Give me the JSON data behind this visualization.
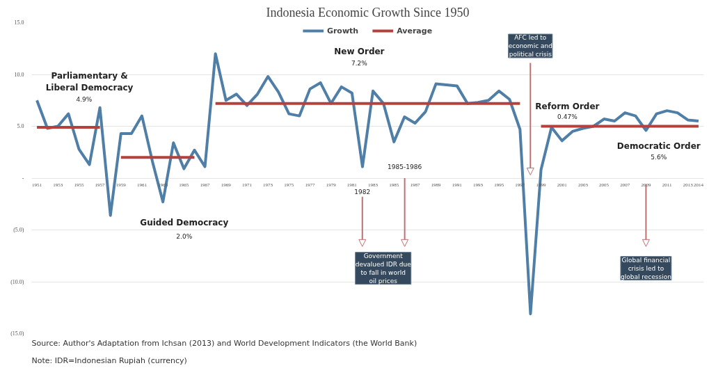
{
  "chart_data": {
    "type": "line",
    "title": "Indonesia Economic Growth Since 1950",
    "x": [
      1951,
      1952,
      1953,
      1954,
      1955,
      1956,
      1957,
      1958,
      1959,
      1960,
      1961,
      1962,
      1963,
      1964,
      1965,
      1966,
      1967,
      1968,
      1969,
      1970,
      1971,
      1972,
      1973,
      1974,
      1975,
      1976,
      1977,
      1978,
      1979,
      1980,
      1981,
      1982,
      1983,
      1984,
      1985,
      1986,
      1987,
      1988,
      1989,
      1990,
      1991,
      1992,
      1993,
      1994,
      1995,
      1996,
      1997,
      1998,
      1999,
      2000,
      2001,
      2002,
      2003,
      2004,
      2005,
      2006,
      2007,
      2008,
      2009,
      2010,
      2011,
      2012,
      2013,
      2014
    ],
    "series": [
      {
        "name": "Growth",
        "color": "#4f7ea6",
        "values": [
          7.5,
          4.8,
          5.0,
          6.2,
          2.8,
          1.3,
          6.8,
          -3.6,
          4.3,
          4.3,
          6.0,
          1.6,
          -2.3,
          3.4,
          0.9,
          2.7,
          1.1,
          12.0,
          7.5,
          8.1,
          7.0,
          8.1,
          9.8,
          8.3,
          6.2,
          6.0,
          8.6,
          9.2,
          7.2,
          8.8,
          8.2,
          1.1,
          8.4,
          7.2,
          3.5,
          5.9,
          5.3,
          6.4,
          9.1,
          9.0,
          8.9,
          7.2,
          7.3,
          7.5,
          8.4,
          7.6,
          4.7,
          -13.1,
          0.8,
          4.9,
          3.6,
          4.5,
          4.8,
          5.0,
          5.7,
          5.5,
          6.3,
          6.0,
          4.6,
          6.2,
          6.5,
          6.3,
          5.6,
          5.5
        ]
      },
      {
        "name": "Average",
        "color": "#b5413d",
        "values": [
          4.9,
          4.9,
          4.9,
          4.9,
          4.9,
          4.9,
          4.9,
          null,
          2.0,
          2.0,
          2.0,
          2.0,
          2.0,
          2.0,
          2.0,
          2.0,
          null,
          7.2,
          7.2,
          7.2,
          7.2,
          7.2,
          7.2,
          7.2,
          7.2,
          7.2,
          7.2,
          7.2,
          7.2,
          7.2,
          7.2,
          7.2,
          7.2,
          7.2,
          7.2,
          7.2,
          7.2,
          7.2,
          7.2,
          7.2,
          7.2,
          7.2,
          7.2,
          7.2,
          7.2,
          7.2,
          7.2,
          null,
          5.0,
          5.0,
          5.0,
          5.0,
          5.0,
          5.0,
          5.0,
          5.0,
          5.0,
          5.0,
          5.0,
          5.0,
          5.0,
          5.0,
          5.0,
          5.0
        ]
      }
    ],
    "xlim": [
      1950.5,
      2014.5
    ],
    "xticks": [
      1951,
      1953,
      1955,
      1957,
      1959,
      1961,
      1963,
      1965,
      1967,
      1969,
      1971,
      1973,
      1975,
      1977,
      1979,
      1981,
      1983,
      1985,
      1987,
      1989,
      1991,
      1993,
      1995,
      1997,
      1999,
      2001,
      2003,
      2005,
      2007,
      2009,
      2011,
      2013,
      2014
    ],
    "ylim": [
      -15,
      15
    ],
    "yticks": [
      {
        "value": 15,
        "label": "15.0"
      },
      {
        "value": 10,
        "label": "10.0"
      },
      {
        "value": 5,
        "label": "5.0"
      },
      {
        "value": 0,
        "label": "-"
      },
      {
        "value": -5,
        "label": "(5.0)"
      },
      {
        "value": -10,
        "label": "(10.0)"
      },
      {
        "value": -15,
        "label": "(15.0)"
      }
    ],
    "grid": "y",
    "legend": "top",
    "marker": "none",
    "line_style": "solid",
    "annotations": [
      "Parliamentary & Liberal Democracy",
      "4.9%",
      "Guided Democracy",
      "2.0%",
      "New Order",
      "7.2%",
      "Reform Order",
      "0.47%",
      "Democratic Order",
      "5.6%",
      "1982",
      "1985-1986",
      "AFC led to economic and political crisis",
      "Government devalued IDR due to fall in world oil prices",
      "Global financial crisis led to global recession",
      "Source: Author's Adaptation from Ichsan (2013) and World Development Indicators (the World Bank)",
      "Note: IDR=Indonesian Rupiah (currency)"
    ]
  }
}
